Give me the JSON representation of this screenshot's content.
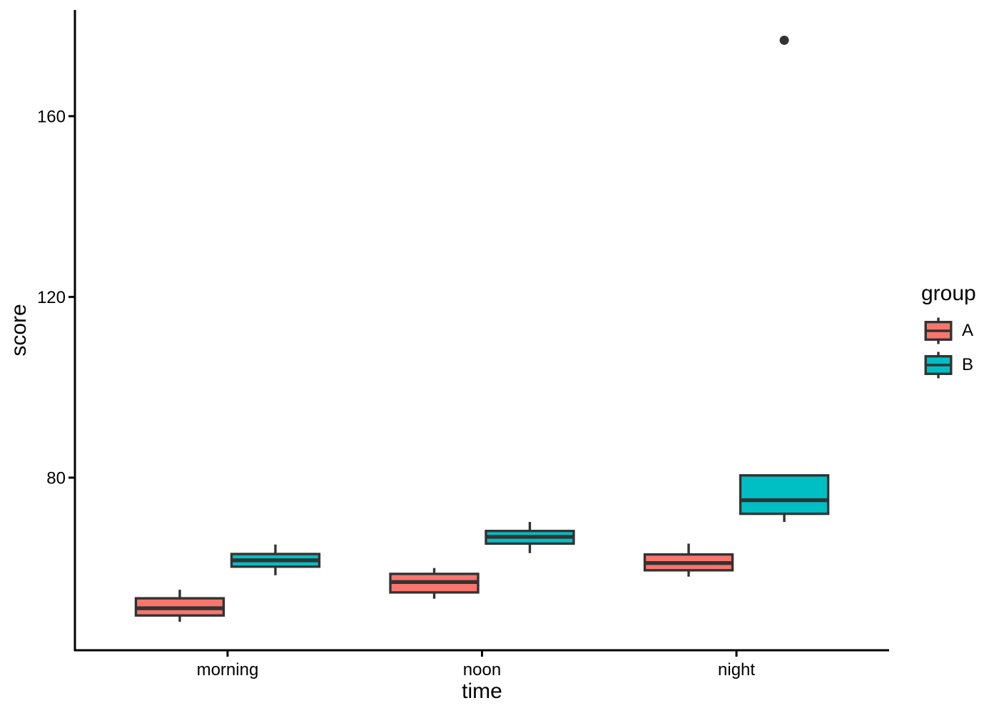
{
  "figure": {
    "background": "#FFFFFF"
  },
  "chart_data": {
    "type": "boxplot",
    "title": "",
    "xlabel": "time",
    "ylabel": "score",
    "categories": [
      "morning",
      "noon",
      "night"
    ],
    "ylim": [
      41.8,
      183.5
    ],
    "yticks": [
      80,
      120,
      160
    ],
    "grid": false,
    "legend": {
      "title": "group",
      "position": "right"
    },
    "axis_color": "#000000",
    "text_color": "#000000",
    "stroke": "#333333",
    "outlier_color": "#333333",
    "series": [
      {
        "name": "A",
        "fill": "#F8766D",
        "boxes": [
          {
            "category": "morning",
            "whislo": 48.1,
            "q1": 49.5,
            "med": 51.1,
            "q3": 53.3,
            "whishi": 55.2,
            "outliers": []
          },
          {
            "category": "noon",
            "whislo": 53.2,
            "q1": 54.6,
            "med": 56.9,
            "q3": 58.7,
            "whishi": 60.0,
            "outliers": []
          },
          {
            "category": "night",
            "whislo": 58.1,
            "q1": 59.5,
            "med": 61.1,
            "q3": 63.0,
            "whishi": 65.4,
            "outliers": []
          }
        ]
      },
      {
        "name": "B",
        "fill": "#00BFC4",
        "boxes": [
          {
            "category": "morning",
            "whislo": 58.4,
            "q1": 60.3,
            "med": 61.7,
            "q3": 63.1,
            "whishi": 65.2,
            "outliers": []
          },
          {
            "category": "noon",
            "whislo": 63.3,
            "q1": 65.4,
            "med": 66.9,
            "q3": 68.2,
            "whishi": 70.2,
            "outliers": []
          },
          {
            "category": "night",
            "whislo": 70.2,
            "q1": 72.0,
            "med": 75.0,
            "q3": 80.5,
            "whishi": 80.5,
            "outliers": [
              176.8
            ]
          }
        ]
      }
    ]
  }
}
